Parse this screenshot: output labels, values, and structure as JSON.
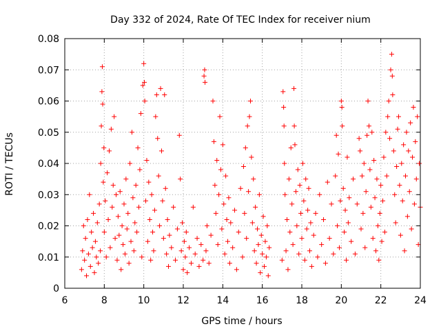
{
  "chart_data": {
    "type": "scatter",
    "title": "Day 332 of 2024, Rate Of TEC Index for receiver nium",
    "xlabel": "GPS time / hours",
    "ylabel": "ROTI / TECUs",
    "xlim": [
      6,
      24
    ],
    "ylim": [
      0,
      0.08
    ],
    "x_ticks": [
      6,
      8,
      10,
      12,
      14,
      16,
      18,
      20,
      22,
      24
    ],
    "x_tick_labels": [
      "6",
      "8",
      "10",
      "12",
      "14",
      "16",
      "18",
      "20",
      "22",
      "24"
    ],
    "y_ticks": [
      0,
      0.01,
      0.02,
      0.03,
      0.04,
      0.05,
      0.06,
      0.07,
      0.08
    ],
    "y_tick_labels": [
      "0",
      "0.01",
      "0.02",
      "0.03",
      "0.04",
      "0.05",
      "0.06",
      "0.07",
      "0.08"
    ],
    "grid": true,
    "marker": "+",
    "color": "#ff0000",
    "series": [
      {
        "name": "ROTI",
        "points": [
          [
            6.85,
            0.006
          ],
          [
            6.9,
            0.012
          ],
          [
            6.95,
            0.02
          ],
          [
            7.0,
            0.009
          ],
          [
            7.05,
            0.016
          ],
          [
            7.1,
            0.004
          ],
          [
            7.15,
            0.022
          ],
          [
            7.2,
            0.011
          ],
          [
            7.25,
            0.03
          ],
          [
            7.3,
            0.007
          ],
          [
            7.35,
            0.018
          ],
          [
            7.4,
            0.013
          ],
          [
            7.45,
            0.024
          ],
          [
            7.5,
            0.005
          ],
          [
            7.55,
            0.015
          ],
          [
            7.6,
            0.01
          ],
          [
            7.65,
            0.021
          ],
          [
            7.7,
            0.008
          ],
          [
            7.75,
            0.027
          ],
          [
            7.8,
            0.012
          ],
          [
            7.82,
            0.04
          ],
          [
            7.85,
            0.052
          ],
          [
            7.88,
            0.063
          ],
          [
            7.9,
            0.071
          ],
          [
            7.92,
            0.059
          ],
          [
            7.95,
            0.034
          ],
          [
            7.98,
            0.045
          ],
          [
            8.0,
            0.018
          ],
          [
            8.05,
            0.028
          ],
          [
            8.1,
            0.01
          ],
          [
            8.15,
            0.037
          ],
          [
            8.2,
            0.022
          ],
          [
            8.25,
            0.044
          ],
          [
            8.3,
            0.013
          ],
          [
            8.35,
            0.051
          ],
          [
            8.4,
            0.026
          ],
          [
            8.45,
            0.033
          ],
          [
            8.5,
            0.055
          ],
          [
            8.55,
            0.016
          ],
          [
            8.6,
            0.03
          ],
          [
            8.65,
            0.009
          ],
          [
            8.7,
            0.023
          ],
          [
            8.75,
            0.017
          ],
          [
            8.8,
            0.031
          ],
          [
            8.85,
            0.006
          ],
          [
            8.9,
            0.02
          ],
          [
            8.95,
            0.014
          ],
          [
            9.0,
            0.027
          ],
          [
            9.05,
            0.011
          ],
          [
            9.1,
            0.035
          ],
          [
            9.15,
            0.019
          ],
          [
            9.2,
            0.024
          ],
          [
            9.25,
            0.008
          ],
          [
            9.3,
            0.04
          ],
          [
            9.35,
            0.015
          ],
          [
            9.4,
            0.05
          ],
          [
            9.45,
            0.029
          ],
          [
            9.5,
            0.012
          ],
          [
            9.55,
            0.021
          ],
          [
            9.6,
            0.033
          ],
          [
            9.65,
            0.018
          ],
          [
            9.7,
            0.045
          ],
          [
            9.75,
            0.026
          ],
          [
            9.8,
            0.038
          ],
          [
            9.85,
            0.056
          ],
          [
            9.9,
            0.01
          ],
          [
            9.95,
            0.065
          ],
          [
            10.0,
            0.072
          ],
          [
            10.03,
            0.066
          ],
          [
            10.05,
            0.06
          ],
          [
            10.1,
            0.028
          ],
          [
            10.15,
            0.041
          ],
          [
            10.2,
            0.015
          ],
          [
            10.25,
            0.034
          ],
          [
            10.3,
            0.022
          ],
          [
            10.35,
            0.009
          ],
          [
            10.4,
            0.03
          ],
          [
            10.45,
            0.018
          ],
          [
            10.5,
            0.012
          ],
          [
            10.55,
            0.025
          ],
          [
            10.6,
            0.055
          ],
          [
            10.65,
            0.062
          ],
          [
            10.7,
            0.048
          ],
          [
            10.75,
            0.036
          ],
          [
            10.8,
            0.02
          ],
          [
            10.85,
            0.064
          ],
          [
            10.9,
            0.044
          ],
          [
            10.95,
            0.028
          ],
          [
            11.0,
            0.016
          ],
          [
            11.05,
            0.062
          ],
          [
            11.1,
            0.032
          ],
          [
            11.15,
            0.011
          ],
          [
            11.2,
            0.022
          ],
          [
            11.25,
            0.007
          ],
          [
            11.3,
            0.017
          ],
          [
            11.4,
            0.013
          ],
          [
            11.5,
            0.026
          ],
          [
            11.6,
            0.009
          ],
          [
            11.7,
            0.019
          ],
          [
            11.8,
            0.049
          ],
          [
            11.85,
            0.035
          ],
          [
            11.9,
            0.012
          ],
          [
            11.95,
            0.021
          ],
          [
            12.0,
            0.006
          ],
          [
            12.05,
            0.015
          ],
          [
            12.1,
            0.01
          ],
          [
            12.15,
            0.018
          ],
          [
            12.2,
            0.005
          ],
          [
            12.3,
            0.013
          ],
          [
            12.4,
            0.008
          ],
          [
            12.5,
            0.026
          ],
          [
            12.6,
            0.011
          ],
          [
            12.7,
            0.016
          ],
          [
            12.8,
            0.007
          ],
          [
            12.9,
            0.014
          ],
          [
            13.0,
            0.009
          ],
          [
            13.05,
            0.068
          ],
          [
            13.08,
            0.07
          ],
          [
            13.1,
            0.066
          ],
          [
            13.15,
            0.012
          ],
          [
            13.2,
            0.02
          ],
          [
            13.3,
            0.008
          ],
          [
            13.4,
            0.017
          ],
          [
            13.5,
            0.06
          ],
          [
            13.55,
            0.047
          ],
          [
            13.6,
            0.033
          ],
          [
            13.65,
            0.024
          ],
          [
            13.7,
            0.041
          ],
          [
            13.75,
            0.014
          ],
          [
            13.8,
            0.03
          ],
          [
            13.85,
            0.055
          ],
          [
            13.9,
            0.038
          ],
          [
            13.95,
            0.019
          ],
          [
            14.0,
            0.046
          ],
          [
            14.05,
            0.027
          ],
          [
            14.1,
            0.011
          ],
          [
            14.15,
            0.036
          ],
          [
            14.2,
            0.022
          ],
          [
            14.25,
            0.015
          ],
          [
            14.3,
            0.029
          ],
          [
            14.35,
            0.008
          ],
          [
            14.4,
            0.021
          ],
          [
            14.5,
            0.013
          ],
          [
            14.6,
            0.025
          ],
          [
            14.7,
            0.006
          ],
          [
            14.8,
            0.018
          ],
          [
            14.9,
            0.032
          ],
          [
            15.0,
            0.01
          ],
          [
            15.05,
            0.039
          ],
          [
            15.1,
            0.024
          ],
          [
            15.15,
            0.045
          ],
          [
            15.2,
            0.016
          ],
          [
            15.25,
            0.052
          ],
          [
            15.3,
            0.031
          ],
          [
            15.35,
            0.055
          ],
          [
            15.4,
            0.06
          ],
          [
            15.45,
            0.042
          ],
          [
            15.5,
            0.021
          ],
          [
            15.55,
            0.035
          ],
          [
            15.6,
            0.012
          ],
          [
            15.65,
            0.026
          ],
          [
            15.7,
            0.008
          ],
          [
            15.75,
            0.019
          ],
          [
            15.8,
            0.014
          ],
          [
            15.85,
            0.03
          ],
          [
            15.9,
            0.005
          ],
          [
            15.95,
            0.017
          ],
          [
            16.0,
            0.011
          ],
          [
            16.05,
            0.023
          ],
          [
            16.1,
            0.007
          ],
          [
            16.15,
            0.015
          ],
          [
            16.2,
            0.01
          ],
          [
            16.25,
            0.02
          ],
          [
            16.3,
            0.004
          ],
          [
            16.35,
            0.013
          ],
          [
            17.0,
            0.009
          ],
          [
            17.05,
            0.063
          ],
          [
            17.08,
            0.058
          ],
          [
            17.1,
            0.052
          ],
          [
            17.12,
            0.04
          ],
          [
            17.15,
            0.03
          ],
          [
            17.2,
            0.012
          ],
          [
            17.25,
            0.022
          ],
          [
            17.3,
            0.006
          ],
          [
            17.35,
            0.035
          ],
          [
            17.4,
            0.018
          ],
          [
            17.45,
            0.045
          ],
          [
            17.5,
            0.027
          ],
          [
            17.55,
            0.014
          ],
          [
            17.6,
            0.064
          ],
          [
            17.62,
            0.052
          ],
          [
            17.65,
            0.046
          ],
          [
            17.7,
            0.031
          ],
          [
            17.75,
            0.02
          ],
          [
            17.8,
            0.038
          ],
          [
            17.85,
            0.011
          ],
          [
            17.9,
            0.033
          ],
          [
            17.95,
            0.024
          ],
          [
            18.0,
            0.016
          ],
          [
            18.05,
            0.04
          ],
          [
            18.1,
            0.028
          ],
          [
            18.15,
            0.009
          ],
          [
            18.2,
            0.035
          ],
          [
            18.25,
            0.019
          ],
          [
            18.3,
            0.025
          ],
          [
            18.35,
            0.032
          ],
          [
            18.4,
            0.012
          ],
          [
            18.45,
            0.021
          ],
          [
            18.5,
            0.007
          ],
          [
            18.6,
            0.017
          ],
          [
            18.7,
            0.024
          ],
          [
            18.8,
            0.01
          ],
          [
            18.9,
            0.03
          ],
          [
            19.0,
            0.014
          ],
          [
            19.1,
            0.022
          ],
          [
            19.2,
            0.008
          ],
          [
            19.3,
            0.034
          ],
          [
            19.4,
            0.016
          ],
          [
            19.5,
            0.027
          ],
          [
            19.6,
            0.011
          ],
          [
            19.7,
            0.036
          ],
          [
            19.75,
            0.049
          ],
          [
            19.8,
            0.02
          ],
          [
            19.85,
            0.043
          ],
          [
            19.9,
            0.013
          ],
          [
            19.95,
            0.028
          ],
          [
            20.0,
            0.06
          ],
          [
            20.03,
            0.058
          ],
          [
            20.05,
            0.052
          ],
          [
            20.1,
            0.032
          ],
          [
            20.15,
            0.018
          ],
          [
            20.2,
            0.025
          ],
          [
            20.25,
            0.009
          ],
          [
            20.3,
            0.042
          ],
          [
            20.35,
            0.021
          ],
          [
            20.4,
            0.029
          ],
          [
            20.5,
            0.015
          ],
          [
            20.6,
            0.035
          ],
          [
            20.7,
            0.011
          ],
          [
            20.8,
            0.027
          ],
          [
            20.9,
            0.048
          ],
          [
            20.95,
            0.044
          ],
          [
            21.0,
            0.019
          ],
          [
            21.05,
            0.036
          ],
          [
            21.1,
            0.024
          ],
          [
            21.15,
            0.04
          ],
          [
            21.2,
            0.013
          ],
          [
            21.25,
            0.031
          ],
          [
            21.3,
            0.049
          ],
          [
            21.35,
            0.06
          ],
          [
            21.4,
            0.052
          ],
          [
            21.45,
            0.038
          ],
          [
            21.5,
            0.026
          ],
          [
            21.55,
            0.05
          ],
          [
            21.6,
            0.016
          ],
          [
            21.65,
            0.041
          ],
          [
            21.7,
            0.029
          ],
          [
            21.75,
            0.012
          ],
          [
            21.8,
            0.035
          ],
          [
            21.85,
            0.02
          ],
          [
            21.9,
            0.009
          ],
          [
            21.95,
            0.024
          ],
          [
            22.0,
            0.033
          ],
          [
            22.05,
            0.015
          ],
          [
            22.1,
            0.028
          ],
          [
            22.15,
            0.042
          ],
          [
            22.2,
            0.018
          ],
          [
            22.25,
            0.05
          ],
          [
            22.3,
            0.036
          ],
          [
            22.35,
            0.055
          ],
          [
            22.4,
            0.06
          ],
          [
            22.45,
            0.048
          ],
          [
            22.5,
            0.07
          ],
          [
            22.55,
            0.075
          ],
          [
            22.58,
            0.068
          ],
          [
            22.6,
            0.062
          ],
          [
            22.65,
            0.044
          ],
          [
            22.7,
            0.03
          ],
          [
            22.75,
            0.021
          ],
          [
            22.8,
            0.039
          ],
          [
            22.85,
            0.051
          ],
          [
            22.9,
            0.055
          ],
          [
            22.95,
            0.033
          ],
          [
            23.0,
            0.017
          ],
          [
            23.05,
            0.04
          ],
          [
            23.1,
            0.028
          ],
          [
            23.15,
            0.046
          ],
          [
            23.2,
            0.012
          ],
          [
            23.25,
            0.036
          ],
          [
            23.3,
            0.05
          ],
          [
            23.35,
            0.023
          ],
          [
            23.4,
            0.044
          ],
          [
            23.45,
            0.031
          ],
          [
            23.5,
            0.053
          ],
          [
            23.55,
            0.019
          ],
          [
            23.6,
            0.042
          ],
          [
            23.65,
            0.058
          ],
          [
            23.7,
            0.027
          ],
          [
            23.75,
            0.047
          ],
          [
            23.8,
            0.035
          ],
          [
            23.85,
            0.055
          ],
          [
            23.9,
            0.014
          ],
          [
            23.95,
            0.04
          ],
          [
            24.0,
            0.026
          ]
        ]
      }
    ]
  }
}
